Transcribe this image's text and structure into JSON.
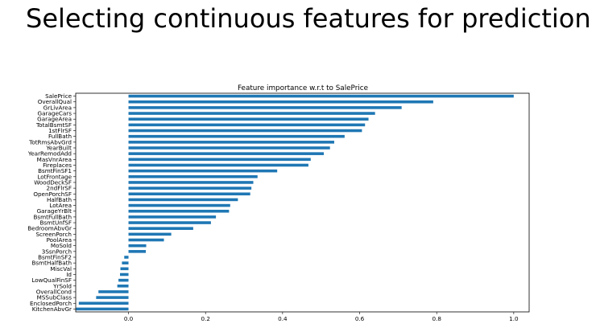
{
  "slide": {
    "title": "Selecting continuous features for prediction"
  },
  "chart_data": {
    "type": "bar",
    "orientation": "horizontal",
    "title": "Feature importance w.r.t to SalePrice",
    "xlabel": "",
    "ylabel": "",
    "xlim": [
      -0.137,
      1.04
    ],
    "xticks": [
      0.0,
      0.2,
      0.4,
      0.6,
      0.8,
      1.0
    ],
    "xtick_labels": [
      "0.0",
      "0.2",
      "0.4",
      "0.6",
      "0.8",
      "1.0"
    ],
    "grid": false,
    "bar_color": "#1f77b4",
    "categories": [
      "SalePrice",
      "OverallQual",
      "GrLivArea",
      "GarageCars",
      "GarageArea",
      "TotalBsmtSF",
      "1stFlrSF",
      "FullBath",
      "TotRmsAbvGrd",
      "YearBuilt",
      "YearRemodAdd",
      "MasVnrArea",
      "Fireplaces",
      "BsmtFinSF1",
      "LotFrontage",
      "WoodDeckSF",
      "2ndFlrSF",
      "OpenPorchSF",
      "HalfBath",
      "LotArea",
      "GarageYrBlt",
      "BsmtFullBath",
      "BsmtUnfSF",
      "BedroomAbvGr",
      "ScreenPorch",
      "PoolArea",
      "MoSold",
      "3SsnPorch",
      "BsmtFinSF2",
      "BsmtHalfBath",
      "MiscVal",
      "Id",
      "LowQualFinSF",
      "YrSold",
      "OverallCond",
      "MSSubClass",
      "EnclosedPorch",
      "KitchenAbvGr"
    ],
    "values": [
      1.0,
      0.791,
      0.709,
      0.64,
      0.623,
      0.614,
      0.606,
      0.561,
      0.534,
      0.523,
      0.507,
      0.473,
      0.467,
      0.386,
      0.335,
      0.324,
      0.319,
      0.316,
      0.284,
      0.264,
      0.261,
      0.227,
      0.214,
      0.168,
      0.111,
      0.092,
      0.046,
      0.045,
      -0.011,
      -0.017,
      -0.021,
      -0.022,
      -0.026,
      -0.029,
      -0.078,
      -0.084,
      -0.129,
      -0.136
    ]
  }
}
